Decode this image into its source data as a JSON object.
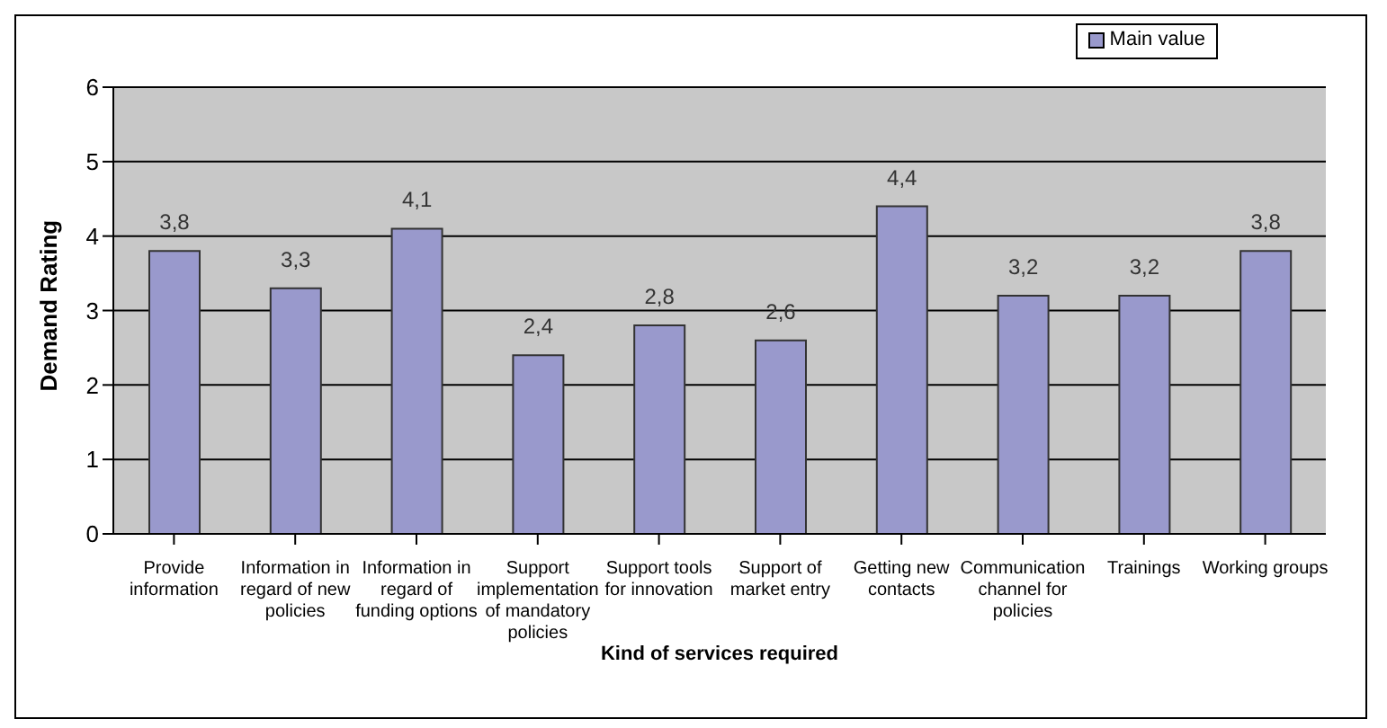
{
  "chart_data": {
    "type": "bar",
    "xlabel": "Kind of services required",
    "ylabel": "Demand Rating",
    "categories": [
      "Provide information",
      "Information in regard of new policies",
      "Information in regard of funding options",
      "Support implementation of mandatory policies",
      "Support tools for innovation",
      "Support of market entry",
      "Getting new contacts",
      "Communication channel for policies",
      "Trainings",
      "Working groups"
    ],
    "series": [
      {
        "name": "Main value",
        "color": "#9999cc",
        "values": [
          3.8,
          3.3,
          4.1,
          2.4,
          2.8,
          2.6,
          4.4,
          3.2,
          3.2,
          3.8
        ],
        "value_labels": [
          "3,8",
          "3,3",
          "4,1",
          "2,4",
          "2,8",
          "2,6",
          "4,4",
          "3,2",
          "3,2",
          "3,8"
        ]
      }
    ],
    "ylim": [
      0,
      6
    ],
    "yticks": [
      0,
      1,
      2,
      3,
      4,
      5,
      6
    ],
    "grid": "y",
    "legend": "top right"
  }
}
